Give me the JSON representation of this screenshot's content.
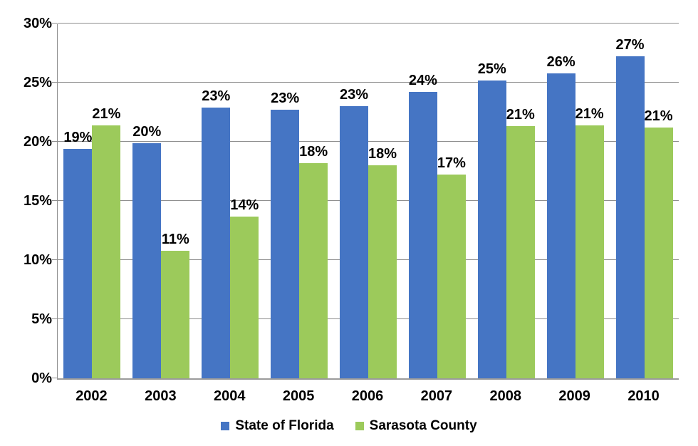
{
  "chart_data": {
    "type": "bar",
    "title": "",
    "xlabel": "",
    "ylabel": "",
    "categories": [
      "2002",
      "2003",
      "2004",
      "2005",
      "2006",
      "2007",
      "2008",
      "2009",
      "2010"
    ],
    "series": [
      {
        "name": "State of Florida",
        "color": "#4575c4",
        "values": [
          19.4,
          19.9,
          22.9,
          22.7,
          23.0,
          24.2,
          25.2,
          25.8,
          27.2
        ],
        "labels": [
          "19%",
          "20%",
          "23%",
          "23%",
          "23%",
          "24%",
          "25%",
          "26%",
          "27%"
        ]
      },
      {
        "name": "Sarasota County",
        "color": "#9cca5b",
        "values": [
          21.4,
          10.8,
          13.7,
          18.2,
          18.0,
          17.2,
          21.3,
          21.4,
          21.2
        ],
        "labels": [
          "21%",
          "11%",
          "14%",
          "18%",
          "18%",
          "17%",
          "21%",
          "21%",
          "21%"
        ]
      }
    ],
    "ylim": [
      0,
      30
    ],
    "yticks": [
      {
        "value": 0,
        "label": "0%"
      },
      {
        "value": 5,
        "label": "5%"
      },
      {
        "value": 10,
        "label": "10%"
      },
      {
        "value": 15,
        "label": "15%"
      },
      {
        "value": 20,
        "label": "20%"
      },
      {
        "value": 25,
        "label": "25%"
      },
      {
        "value": 30,
        "label": "30%"
      }
    ],
    "grid": true,
    "legend_position": "bottom",
    "colors": {
      "gridline": "#8e8e8e",
      "axis": "#9b9b9b",
      "text": "#000000",
      "background": "#ffffff"
    }
  }
}
